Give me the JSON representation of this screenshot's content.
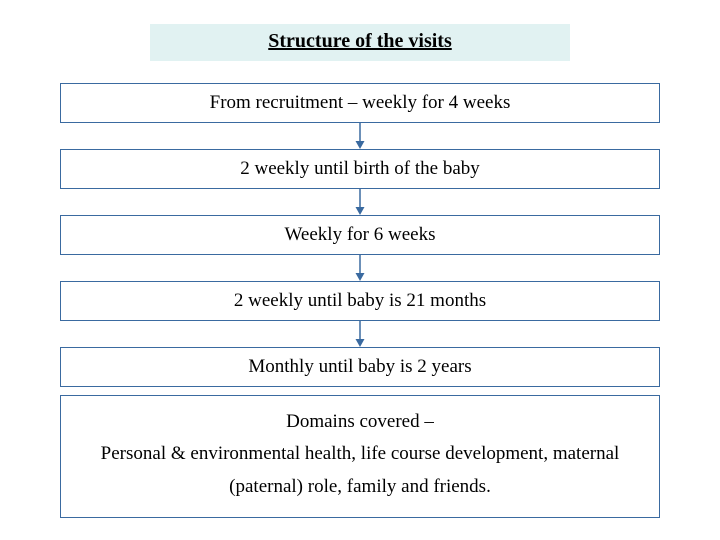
{
  "title": "Structure of the visits",
  "title_bg": "#e1f2f2",
  "border_color": "#3a6aa0",
  "arrow_color": "#3a6aa0",
  "font_family": "Georgia, 'Times New Roman', serif",
  "steps": [
    "From recruitment – weekly for 4 weeks",
    "2 weekly until birth of the baby",
    "Weekly for 6 weeks",
    "2 weekly until baby is 21 months",
    "Monthly until baby is 2 years"
  ],
  "domains": {
    "heading": "Domains covered –",
    "body": "Personal & environmental health, life course development, maternal (paternal) role, family and friends."
  },
  "box_font_size": 19,
  "title_font_size": 20
}
